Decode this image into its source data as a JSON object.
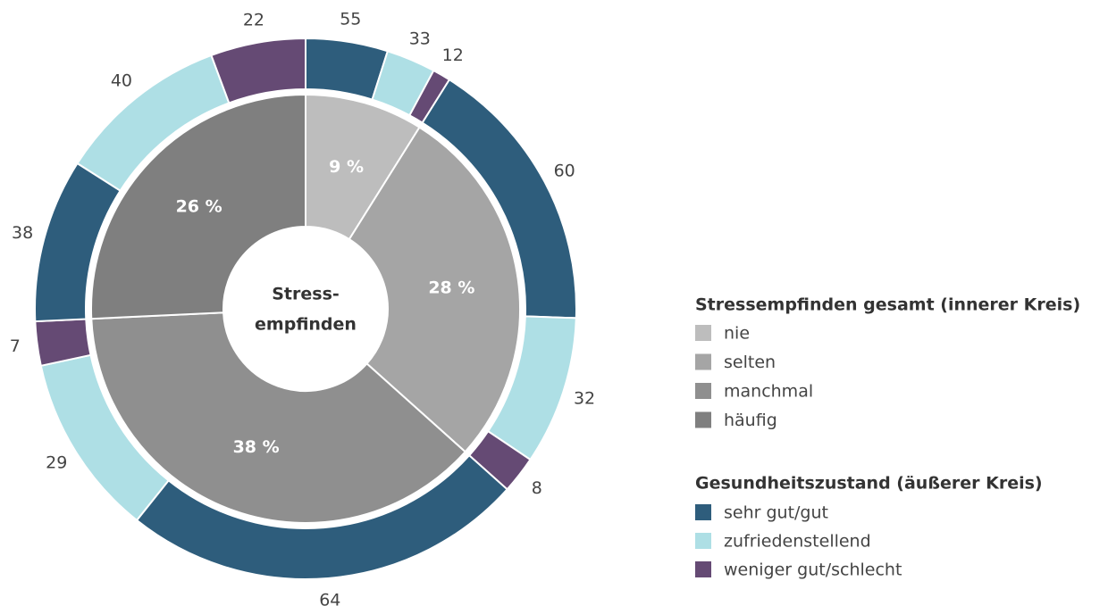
{
  "chart_data": {
    "type": "nested-donut",
    "center_label": [
      "Stress-",
      "empfinden"
    ],
    "inner": {
      "legend_title": "Stressempfinden gesamt (innerer Kreis)",
      "categories": [
        "nie",
        "selten",
        "manchmal",
        "häufig"
      ],
      "values": [
        9,
        28,
        38,
        26
      ],
      "value_labels": [
        "9 %",
        "28 %",
        "38 %",
        "26 %"
      ],
      "colors": [
        "#bdbdbd",
        "#a5a5a5",
        "#8f8f8f",
        "#7f7f7f"
      ]
    },
    "outer": {
      "legend_title": "Gesundheitszustand (äußerer Kreis)",
      "series": [
        {
          "name": "sehr gut/gut",
          "color": "#2e5d7c",
          "values": [
            55,
            60,
            64,
            38
          ]
        },
        {
          "name": "zufriedenstellend",
          "color": "#aedfe5",
          "values": [
            33,
            32,
            29,
            40
          ]
        },
        {
          "name": "weniger gut/schlecht",
          "color": "#654a74",
          "values": [
            12,
            8,
            7,
            22
          ]
        }
      ]
    }
  }
}
